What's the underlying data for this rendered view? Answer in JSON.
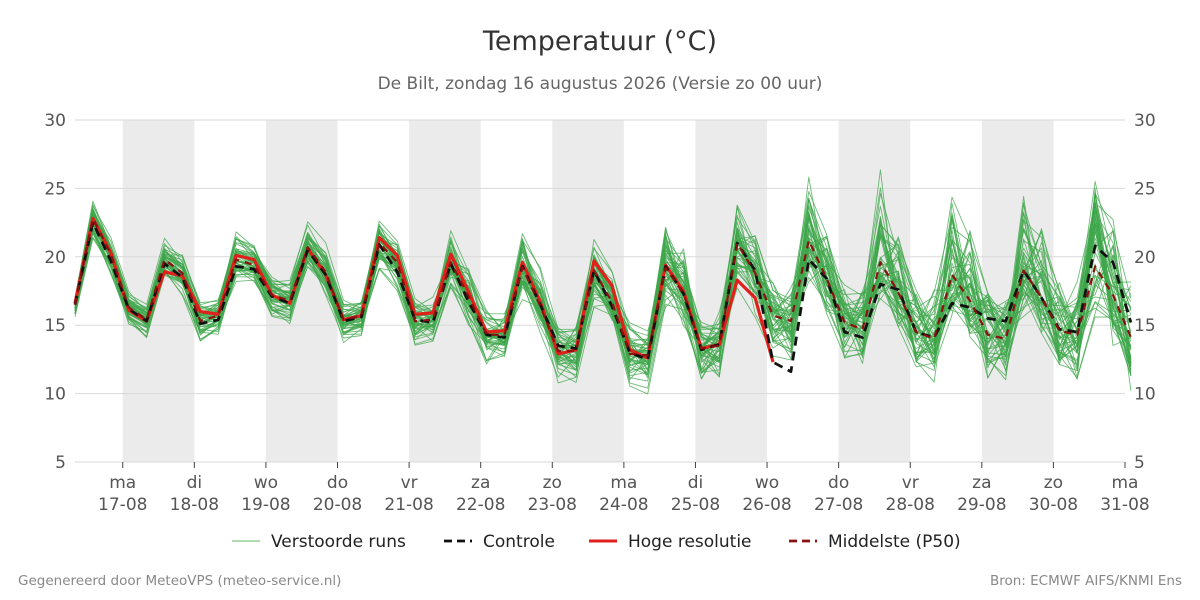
{
  "title": "Temperatuur (°C)",
  "subtitle": "De Bilt, zondag 16 augustus 2026 (Versie zo 00 uur)",
  "footer_left": "Gegenereerd door MeteoVPS (meteo-service.nl)",
  "footer_right": "Bron: ECMWF AIFS/KNMI Ens",
  "chart_data": {
    "type": "line",
    "title": "Temperatuur (°C)",
    "subtitle": "De Bilt, zondag 16 augustus 2026 (Versie zo 00 uur)",
    "ylim": [
      5,
      30
    ],
    "y_ticks": [
      5,
      10,
      15,
      20,
      25,
      30
    ],
    "grid": true,
    "x_unit": "days after 16-08 00:00",
    "xlim": [
      0.333,
      15.0
    ],
    "x_ticks": [
      {
        "x": 1,
        "day": "ma",
        "date": "17-08"
      },
      {
        "x": 2,
        "day": "di",
        "date": "18-08"
      },
      {
        "x": 3,
        "day": "wo",
        "date": "19-08"
      },
      {
        "x": 4,
        "day": "do",
        "date": "20-08"
      },
      {
        "x": 5,
        "day": "vr",
        "date": "21-08"
      },
      {
        "x": 6,
        "day": "za",
        "date": "22-08"
      },
      {
        "x": 7,
        "day": "zo",
        "date": "23-08"
      },
      {
        "x": 8,
        "day": "ma",
        "date": "24-08"
      },
      {
        "x": 9,
        "day": "di",
        "date": "25-08"
      },
      {
        "x": 10,
        "day": "wo",
        "date": "26-08"
      },
      {
        "x": 11,
        "day": "do",
        "date": "27-08"
      },
      {
        "x": 12,
        "day": "vr",
        "date": "28-08"
      },
      {
        "x": 13,
        "day": "za",
        "date": "29-08"
      },
      {
        "x": 14,
        "day": "zo",
        "date": "30-08"
      },
      {
        "x": 15,
        "day": "ma",
        "date": "31-08"
      }
    ],
    "shaded_days": [
      [
        1,
        2
      ],
      [
        3,
        4
      ],
      [
        5,
        6
      ],
      [
        7,
        8
      ],
      [
        9,
        10
      ],
      [
        11,
        12
      ],
      [
        13,
        14
      ]
    ],
    "x_step": 0.25,
    "legend": {
      "position": "bottom",
      "items": [
        {
          "label": "Verstoorde runs",
          "color": "#5cb85c",
          "style": "thin"
        },
        {
          "label": "Controle",
          "color": "#111111",
          "style": "dashed"
        },
        {
          "label": "Hoge resolutie",
          "color": "#e0201b",
          "style": "solid"
        },
        {
          "label": "Middelste (P50)",
          "color": "#8b1010",
          "style": "dashed"
        }
      ]
    },
    "ensemble": {
      "color": "#3da54a",
      "members": 50,
      "p50": [
        16.5,
        22.8,
        20.2,
        16.3,
        15.4,
        19.8,
        18.8,
        15.3,
        15.7,
        19.8,
        19.4,
        17.2,
        16.8,
        20.7,
        18.9,
        15.4,
        15.7,
        21.0,
        19.6,
        15.3,
        15.4,
        19.6,
        17.1,
        14.3,
        14.3,
        19.2,
        16.4,
        13.1,
        13.1,
        19.0,
        16.7,
        12.9,
        12.8,
        19.2,
        17.3,
        13.3,
        13.5,
        21.0,
        18.8,
        15.7,
        15.3,
        21.2,
        18.4,
        15.2,
        14.7,
        19.6,
        17.4,
        14.5,
        14.0,
        18.7,
        16.8,
        14.3,
        14.0,
        19.0,
        17.0,
        14.6,
        14.3,
        19.3,
        17.2,
        14.1
      ],
      "spread_bottom": [
        0.7,
        1.4,
        1.2,
        1.0,
        1.1,
        1.4,
        1.4,
        1.3,
        1.3,
        1.4,
        1.4,
        1.5,
        1.4,
        1.6,
        1.5,
        1.5,
        1.5,
        1.8,
        1.8,
        1.7,
        1.7,
        1.9,
        2.0,
        2.0,
        2.0,
        2.2,
        2.2,
        2.2,
        2.2,
        2.4,
        2.4,
        2.4,
        2.5,
        2.7,
        2.7,
        2.7,
        2.7,
        2.9,
        2.9,
        2.9,
        2.9,
        3.1,
        3.1,
        3.1,
        3.1,
        3.3,
        3.3,
        3.3,
        3.3,
        3.5,
        3.5,
        3.4,
        3.5,
        3.6,
        3.6,
        3.5,
        3.5,
        3.7,
        3.7,
        3.6
      ],
      "spread_top": [
        0.5,
        1.2,
        1.0,
        1.0,
        1.0,
        1.4,
        1.3,
        1.2,
        1.2,
        2.0,
        1.6,
        1.4,
        1.4,
        1.6,
        1.9,
        1.4,
        1.4,
        1.9,
        1.9,
        1.6,
        1.6,
        2.6,
        2.4,
        1.9,
        1.8,
        3.0,
        2.8,
        2.0,
        2.0,
        2.8,
        2.6,
        2.2,
        2.3,
        3.5,
        3.6,
        2.6,
        2.7,
        3.3,
        3.2,
        2.9,
        3.1,
        4.6,
        4.0,
        2.9,
        3.0,
        7.5,
        5.8,
        3.8,
        3.9,
        6.4,
        5.6,
        3.9,
        4.1,
        7.5,
        6.0,
        3.8,
        4.0,
        7.0,
        5.7,
        4.6
      ]
    },
    "series": [
      {
        "name": "Controle",
        "x_start": 0.333,
        "values": [
          16.5,
          22.5,
          19.7,
          16.2,
          15.3,
          19.5,
          18.5,
          15.1,
          15.4,
          19.3,
          19.1,
          17.1,
          16.6,
          20.5,
          18.7,
          15.3,
          15.6,
          20.9,
          18.9,
          15.4,
          15.2,
          19.5,
          16.7,
          14.3,
          14.1,
          19.3,
          16.5,
          13.5,
          13.3,
          19.0,
          16.4,
          13.0,
          12.5,
          19.3,
          17.3,
          13.2,
          13.6,
          21.0,
          19.0,
          12.3,
          11.6,
          19.8,
          18.4,
          14.5,
          14.1,
          18.0,
          17.6,
          14.5,
          14.1,
          16.6,
          16.3,
          15.5,
          15.3,
          19.0,
          17.0,
          14.7,
          14.5,
          20.8,
          19.6,
          15.2
        ]
      },
      {
        "name": "Hoge resolutie",
        "x_start": 0.333,
        "values": [
          16.6,
          22.8,
          20.3,
          16.1,
          15.3,
          18.9,
          18.6,
          16.0,
          15.8,
          20.1,
          19.8,
          17.2,
          16.6,
          20.6,
          18.7,
          15.4,
          15.7,
          21.4,
          20.1,
          15.8,
          15.9,
          20.2,
          17.4,
          14.5,
          14.6,
          19.6,
          16.7,
          12.9,
          13.2,
          19.7,
          17.9,
          13.2,
          12.6,
          19.4,
          17.5,
          13.3,
          13.6,
          18.3,
          17.0,
          12.3
        ]
      },
      {
        "name": "Middelste (P50)",
        "x_start": 0.333,
        "values": [
          16.5,
          22.8,
          20.2,
          16.3,
          15.4,
          19.8,
          18.8,
          15.3,
          15.7,
          19.8,
          19.4,
          17.2,
          16.8,
          20.7,
          18.9,
          15.4,
          15.7,
          21.0,
          19.6,
          15.3,
          15.4,
          19.6,
          17.1,
          14.3,
          14.3,
          19.2,
          16.4,
          13.1,
          13.1,
          19.0,
          16.7,
          12.9,
          12.8,
          19.2,
          17.3,
          13.3,
          13.5,
          21.0,
          18.8,
          15.7,
          15.3,
          21.2,
          18.4,
          15.2,
          14.7,
          19.6,
          17.4,
          14.5,
          14.0,
          18.7,
          16.8,
          14.3,
          14.0,
          19.0,
          17.0,
          14.6,
          14.3,
          19.3,
          17.2,
          14.1
        ]
      }
    ]
  }
}
